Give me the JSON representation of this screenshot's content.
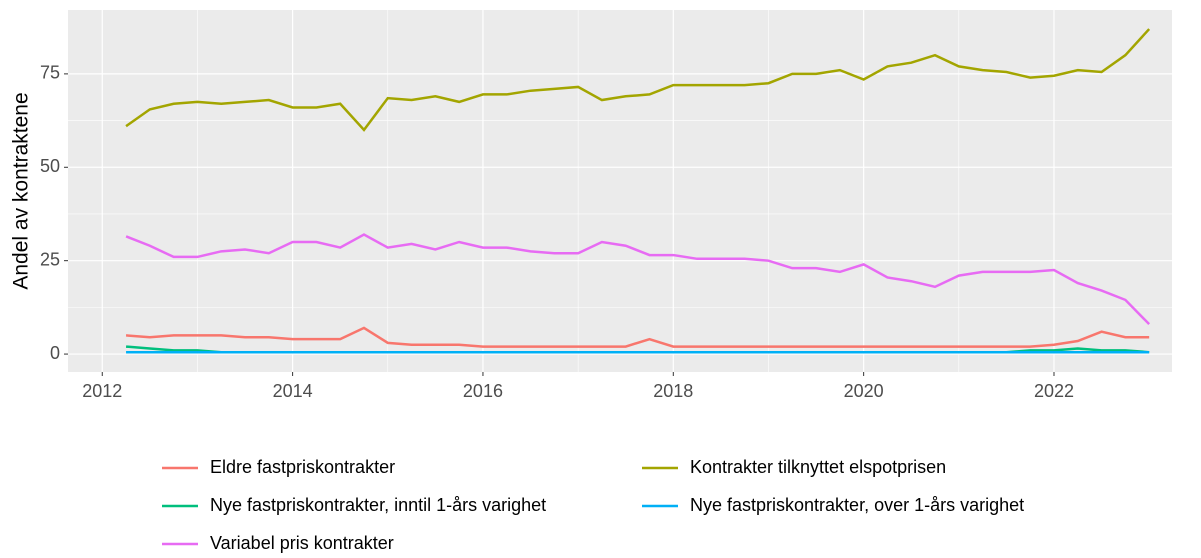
{
  "chart_data": {
    "type": "line",
    "y_label": "Andel av kontraktene",
    "x": [
      2012.25,
      2012.5,
      2012.75,
      2013,
      2013.25,
      2013.5,
      2013.75,
      2014,
      2014.25,
      2014.5,
      2014.75,
      2015,
      2015.25,
      2015.5,
      2015.75,
      2016,
      2016.25,
      2016.5,
      2016.75,
      2017,
      2017.25,
      2017.5,
      2017.75,
      2018,
      2018.25,
      2018.5,
      2018.75,
      2019,
      2019.25,
      2019.5,
      2019.75,
      2020,
      2020.25,
      2020.5,
      2020.75,
      2021,
      2021.25,
      2021.5,
      2021.75,
      2022,
      2022.25,
      2022.5,
      2022.75,
      2023
    ],
    "series": [
      {
        "name": "Eldre fastpriskontrakter",
        "color": "#F8766D",
        "values": [
          5,
          4.5,
          5,
          5,
          5,
          4.5,
          4.5,
          4,
          4,
          4,
          7,
          3,
          2.5,
          2.5,
          2.5,
          2,
          2,
          2,
          2,
          2,
          2,
          2,
          4,
          2,
          2,
          2,
          2,
          2,
          2,
          2,
          2,
          2,
          2,
          2,
          2,
          2,
          2,
          2,
          2,
          2.5,
          3.5,
          6,
          4.5,
          4.5
        ]
      },
      {
        "name": "Kontrakter tilknyttet elspotprisen",
        "color": "#A3A500",
        "values": [
          61,
          65.5,
          67,
          67.5,
          67,
          67.5,
          68,
          66,
          66,
          67,
          60,
          68.5,
          68,
          69,
          67.5,
          69.5,
          69.5,
          70.5,
          71,
          71.5,
          68,
          69,
          69.5,
          72,
          72,
          72,
          72,
          72.5,
          75,
          75,
          76,
          73.5,
          77,
          78,
          80,
          77,
          76,
          75.5,
          74,
          74.5,
          76,
          75.5,
          80,
          87
        ]
      },
      {
        "name": "Nye fastpriskontrakter, inntil 1-års varighet",
        "color": "#00BF7D",
        "values": [
          2,
          1.5,
          1,
          1,
          0.5,
          0.5,
          0.5,
          0.5,
          0.5,
          0.5,
          0.5,
          0.5,
          0.5,
          0.5,
          0.5,
          0.5,
          0.5,
          0.5,
          0.5,
          0.5,
          0.5,
          0.5,
          0.5,
          0.5,
          0.5,
          0.5,
          0.5,
          0.5,
          0.5,
          0.5,
          0.5,
          0.5,
          0.5,
          0.5,
          0.5,
          0.5,
          0.5,
          0.5,
          1,
          1,
          1.5,
          1,
          1,
          0.5
        ]
      },
      {
        "name": "Nye fastpriskontrakter, over 1-års varighet",
        "color": "#00B0F6",
        "values": [
          0.5,
          0.5,
          0.5,
          0.5,
          0.5,
          0.5,
          0.5,
          0.5,
          0.5,
          0.5,
          0.5,
          0.5,
          0.5,
          0.5,
          0.5,
          0.5,
          0.5,
          0.5,
          0.5,
          0.5,
          0.5,
          0.5,
          0.5,
          0.5,
          0.5,
          0.5,
          0.5,
          0.5,
          0.5,
          0.5,
          0.5,
          0.5,
          0.5,
          0.5,
          0.5,
          0.5,
          0.5,
          0.5,
          0.5,
          0.5,
          0.5,
          0.5,
          0.5,
          0.5
        ]
      },
      {
        "name": "Variabel pris kontrakter",
        "color": "#E76BF3",
        "values": [
          31.5,
          29,
          26,
          26,
          27.5,
          28,
          27,
          30,
          30,
          28.5,
          32,
          28.5,
          29.5,
          28,
          30,
          28.5,
          28.5,
          27.5,
          27,
          27,
          30,
          29,
          26.5,
          26.5,
          25.5,
          25.5,
          25.5,
          25,
          23,
          23,
          22,
          24,
          20.5,
          19.5,
          18,
          21,
          22,
          22,
          22,
          22.5,
          19,
          17,
          14.5,
          8
        ]
      }
    ],
    "xlim": [
      2011.64,
      2023.24
    ],
    "xticks": [
      2012,
      2014,
      2016,
      2018,
      2020,
      2022
    ],
    "ylim": [
      -4.8,
      92.1
    ],
    "yticks": [
      0,
      25,
      50,
      75
    ],
    "grid": true,
    "legend_position": "bottom"
  }
}
